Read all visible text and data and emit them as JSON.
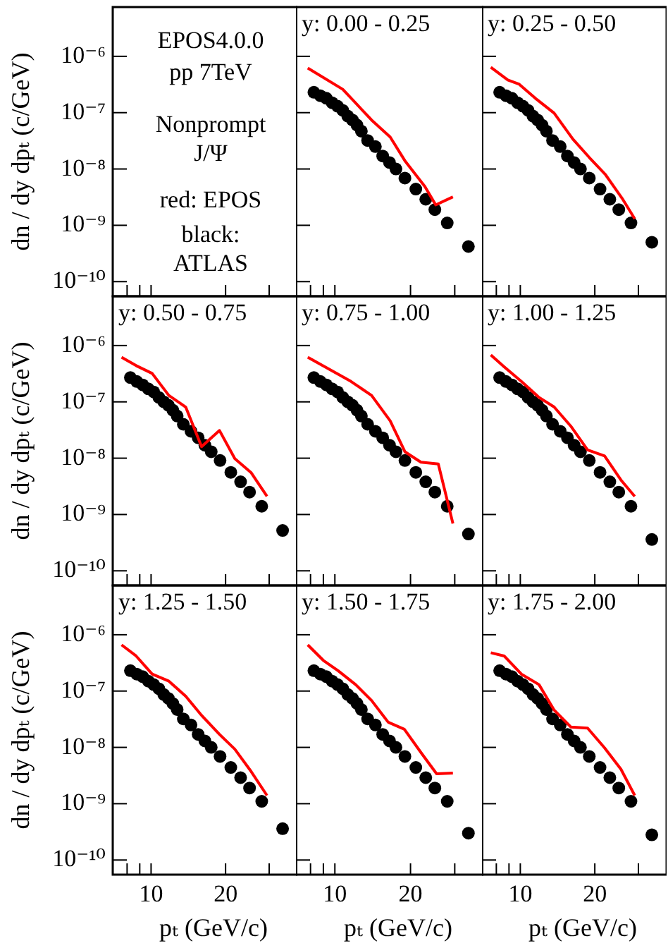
{
  "chart_data": [
    {
      "type": "scatter",
      "ylabel": "dn / dy dpₜ (c/GeV)",
      "annotations": [
        "EPOS4.0.0",
        "pp 7TeV",
        "Nonprompt",
        "J/Ψ",
        "red: EPOS",
        "black:",
        "ATLAS"
      ],
      "log": "xy",
      "xlim": [
        7,
        39
      ],
      "ylim": [
        5.5e-11,
        7.5e-06
      ],
      "xticks": [
        {
          "value": 8,
          "label": null
        },
        {
          "value": 9,
          "label": null
        },
        {
          "value": 10,
          "label": null
        },
        {
          "value": 20,
          "label": null
        },
        {
          "value": 30,
          "label": null
        }
      ],
      "yticks": [
        {
          "value": 1e-06,
          "label": "10⁻⁶"
        },
        {
          "value": 1e-07,
          "label": "10⁻⁷"
        },
        {
          "value": 1e-08,
          "label": "10⁻⁸"
        },
        {
          "value": 1e-09,
          "label": "10⁻⁹"
        },
        {
          "value": 1e-10,
          "label": "10⁻¹⁰"
        }
      ],
      "tick_labels": "y"
    },
    {
      "type": "scatter",
      "title": "y: 0.00 - 0.25",
      "log": "xy",
      "xlim": [
        7,
        39
      ],
      "ylim": [
        5.5e-11,
        7.5e-06
      ],
      "xticks": [
        {
          "value": 8,
          "label": null
        },
        {
          "value": 9,
          "label": null
        },
        {
          "value": 10,
          "label": null
        },
        {
          "value": 20,
          "label": null
        },
        {
          "value": 30,
          "label": null
        }
      ],
      "yticks": [
        {
          "value": 1e-06,
          "label": null
        },
        {
          "value": 1e-07,
          "label": null
        },
        {
          "value": 1e-08,
          "label": null
        },
        {
          "value": 1e-09,
          "label": null
        },
        {
          "value": 1e-10,
          "label": null
        }
      ],
      "tick_labels": false,
      "series": [
        {
          "type": "scatter",
          "marker": "circle",
          "color": "#000000",
          "x": [
            8.25,
            8.75,
            9.25,
            9.75,
            10.25,
            10.75,
            11.25,
            11.75,
            12.25,
            12.75,
            13.5,
            14.5,
            15.5,
            16.5,
            17.5,
            19,
            21,
            23,
            25,
            28,
            34
          ],
          "values": [
            2.3e-07,
            2e-07,
            1.8e-07,
            1.5e-07,
            1.3e-07,
            1.1e-07,
            8.7e-08,
            7.4e-08,
            6e-08,
            4.7e-08,
            3.2e-08,
            2.5e-08,
            1.7e-08,
            1.3e-08,
            1e-08,
            6.9e-09,
            4.4e-09,
            2.9e-09,
            1.9e-09,
            1.1e-09,
            4.2e-10
          ]
        },
        {
          "type": "line",
          "marker": "none",
          "color": "#ff0000",
          "x": [
            7.8,
            10.75,
            14.0,
            16.6,
            19.0,
            22.8,
            25.2,
            29.5
          ],
          "values": [
            6.2e-07,
            2.6e-07,
            7.4e-08,
            3.7e-08,
            1.4e-08,
            4.9e-09,
            2.3e-09,
            3.2e-09
          ]
        }
      ]
    },
    {
      "type": "scatter",
      "title": "y: 0.25 - 0.50",
      "log": "xy",
      "xlim": [
        7,
        39
      ],
      "ylim": [
        5.5e-11,
        7.5e-06
      ],
      "xticks": [
        {
          "value": 8,
          "label": null
        },
        {
          "value": 9,
          "label": null
        },
        {
          "value": 10,
          "label": null
        },
        {
          "value": 20,
          "label": null
        },
        {
          "value": 30,
          "label": null
        }
      ],
      "yticks": [
        {
          "value": 1e-06,
          "label": null
        },
        {
          "value": 1e-07,
          "label": null
        },
        {
          "value": 1e-08,
          "label": null
        },
        {
          "value": 1e-09,
          "label": null
        },
        {
          "value": 1e-10,
          "label": null
        }
      ],
      "tick_labels": false,
      "series": [
        {
          "type": "scatter",
          "marker": "circle",
          "color": "#000000",
          "x": [
            8.25,
            8.75,
            9.25,
            9.75,
            10.25,
            10.75,
            11.25,
            11.75,
            12.25,
            12.75,
            13.5,
            14.5,
            15.5,
            16.5,
            17.5,
            19,
            21,
            23,
            25,
            28,
            34
          ],
          "values": [
            2.3e-07,
            2e-07,
            1.8e-07,
            1.5e-07,
            1.3e-07,
            1.1e-07,
            8.7e-08,
            7.4e-08,
            6e-08,
            4.7e-08,
            3.2e-08,
            2.5e-08,
            1.7e-08,
            1.3e-08,
            1e-08,
            6.9e-09,
            4.4e-09,
            2.9e-09,
            1.9e-09,
            1.1e-09,
            5e-10
          ]
        },
        {
          "type": "line",
          "marker": "none",
          "color": "#ff0000",
          "x": [
            7.6,
            8.9,
            9.9,
            11.5,
            13.7,
            16.3,
            19.0,
            22.1,
            25.8,
            29.0
          ],
          "values": [
            6.4e-07,
            3.8e-07,
            3.2e-07,
            1.8e-07,
            9.8e-08,
            3.4e-08,
            1.6e-08,
            7.9e-09,
            3e-09,
            1.3e-09
          ]
        }
      ]
    },
    {
      "type": "scatter",
      "title": "y: 0.50 - 0.75",
      "ylabel": "dn / dy dpₜ (c/GeV)",
      "log": "xy",
      "xlim": [
        7,
        39
      ],
      "ylim": [
        5.5e-11,
        7.5e-06
      ],
      "xticks": [
        {
          "value": 8,
          "label": null
        },
        {
          "value": 9,
          "label": null
        },
        {
          "value": 10,
          "label": null
        },
        {
          "value": 20,
          "label": null
        },
        {
          "value": 30,
          "label": null
        }
      ],
      "yticks": [
        {
          "value": 1e-06,
          "label": "10⁻⁶"
        },
        {
          "value": 1e-07,
          "label": "10⁻⁷"
        },
        {
          "value": 1e-08,
          "label": "10⁻⁸"
        },
        {
          "value": 1e-09,
          "label": "10⁻⁹"
        },
        {
          "value": 1e-10,
          "label": "10⁻¹⁰"
        }
      ],
      "tick_labels": "y",
      "series": [
        {
          "type": "scatter",
          "marker": "circle",
          "color": "#000000",
          "x": [
            8.25,
            8.75,
            9.25,
            9.75,
            10.25,
            10.75,
            11.25,
            11.75,
            12.25,
            12.75,
            13.5,
            14.5,
            15.5,
            16.5,
            17.5,
            19,
            21,
            23,
            25,
            28,
            34
          ],
          "values": [
            2.7e-07,
            2.3e-07,
            2e-07,
            1.7e-07,
            1.5e-07,
            1.2e-07,
            1e-07,
            8.7e-08,
            7.1e-08,
            5.6e-08,
            4e-08,
            3e-08,
            2.3e-08,
            1.7e-08,
            1.3e-08,
            9.1e-09,
            5.6e-09,
            3.8e-09,
            2.5e-09,
            1.4e-09,
            5.2e-10
          ]
        },
        {
          "type": "line",
          "marker": "none",
          "color": "#ff0000",
          "x": [
            7.6,
            8.7,
            10.1,
            11.8,
            13.8,
            16.0,
            18.9,
            21.8,
            25.4,
            29.4
          ],
          "values": [
            6.2e-07,
            4.4e-07,
            3.2e-07,
            1.3e-07,
            8.1e-08,
            1.6e-08,
            3.1e-08,
            9.8e-09,
            5.5e-09,
            2.1e-09
          ]
        }
      ]
    },
    {
      "type": "scatter",
      "title": "y: 0.75 - 1.00",
      "log": "xy",
      "xlim": [
        7,
        39
      ],
      "ylim": [
        5.5e-11,
        7.5e-06
      ],
      "xticks": [
        {
          "value": 8,
          "label": null
        },
        {
          "value": 9,
          "label": null
        },
        {
          "value": 10,
          "label": null
        },
        {
          "value": 20,
          "label": null
        },
        {
          "value": 30,
          "label": null
        }
      ],
      "yticks": [
        {
          "value": 1e-06,
          "label": null
        },
        {
          "value": 1e-07,
          "label": null
        },
        {
          "value": 1e-08,
          "label": null
        },
        {
          "value": 1e-09,
          "label": null
        },
        {
          "value": 1e-10,
          "label": null
        }
      ],
      "tick_labels": false,
      "series": [
        {
          "type": "scatter",
          "marker": "circle",
          "color": "#000000",
          "x": [
            8.25,
            8.75,
            9.25,
            9.75,
            10.25,
            10.75,
            11.25,
            11.75,
            12.25,
            12.75,
            13.5,
            14.5,
            15.5,
            16.5,
            17.5,
            19,
            21,
            23,
            25,
            28,
            34
          ],
          "values": [
            2.7e-07,
            2.3e-07,
            2e-07,
            1.7e-07,
            1.5e-07,
            1.2e-07,
            1e-07,
            8.7e-08,
            7.1e-08,
            5.6e-08,
            4e-08,
            3e-08,
            2.3e-08,
            1.7e-08,
            1.3e-08,
            9.1e-09,
            5.6e-09,
            3.8e-09,
            2.5e-09,
            1.4e-09,
            4.5e-10
          ]
        },
        {
          "type": "line",
          "marker": "none",
          "color": "#ff0000",
          "x": [
            7.8,
            9.5,
            11.6,
            14.0,
            16.6,
            19.0,
            22.0,
            25.8,
            29.5
          ],
          "values": [
            6.2e-07,
            3.8e-07,
            2.3e-07,
            1.3e-07,
            4.6e-08,
            1.3e-08,
            8.5e-09,
            7.9e-09,
            6.9e-10
          ]
        }
      ]
    },
    {
      "type": "scatter",
      "title": "y: 1.00 - 1.25",
      "log": "xy",
      "xlim": [
        7,
        39
      ],
      "ylim": [
        5.5e-11,
        7.5e-06
      ],
      "xticks": [
        {
          "value": 8,
          "label": null
        },
        {
          "value": 9,
          "label": null
        },
        {
          "value": 10,
          "label": null
        },
        {
          "value": 20,
          "label": null
        },
        {
          "value": 30,
          "label": null
        }
      ],
      "yticks": [
        {
          "value": 1e-06,
          "label": null
        },
        {
          "value": 1e-07,
          "label": null
        },
        {
          "value": 1e-08,
          "label": null
        },
        {
          "value": 1e-09,
          "label": null
        },
        {
          "value": 1e-10,
          "label": null
        }
      ],
      "tick_labels": false,
      "series": [
        {
          "type": "scatter",
          "marker": "circle",
          "color": "#000000",
          "x": [
            8.25,
            8.75,
            9.25,
            9.75,
            10.25,
            10.75,
            11.25,
            11.75,
            12.25,
            12.75,
            13.5,
            14.5,
            15.5,
            16.5,
            17.5,
            19,
            21,
            23,
            25,
            28,
            34
          ],
          "values": [
            2.7e-07,
            2.3e-07,
            2e-07,
            1.7e-07,
            1.5e-07,
            1.2e-07,
            1e-07,
            8.7e-08,
            7.1e-08,
            5.6e-08,
            4e-08,
            3e-08,
            2.3e-08,
            1.7e-08,
            1.3e-08,
            9.1e-09,
            5.6e-09,
            3.8e-09,
            2.5e-09,
            1.4e-09,
            3.6e-10
          ]
        },
        {
          "type": "line",
          "marker": "none",
          "color": "#ff0000",
          "x": [
            7.6,
            8.6,
            10.1,
            11.9,
            13.7,
            16.0,
            18.7,
            21.9,
            25.5,
            29.0
          ],
          "values": [
            6.8e-07,
            4.2e-07,
            2.3e-07,
            1.2e-07,
            8.1e-08,
            3.7e-08,
            1.4e-08,
            1.1e-08,
            4.1e-09,
            2.1e-09
          ]
        }
      ]
    },
    {
      "type": "scatter",
      "title": "y: 1.25 - 1.50",
      "xlabel": "pₜ (GeV/c)",
      "ylabel": "dn / dy dpₜ (c/GeV)",
      "log": "xy",
      "xlim": [
        7,
        39
      ],
      "ylim": [
        5.5e-11,
        7.5e-06
      ],
      "xticks": [
        {
          "value": 8,
          "label": null
        },
        {
          "value": 9,
          "label": null
        },
        {
          "value": 10,
          "label": "10"
        },
        {
          "value": 20,
          "label": "20"
        },
        {
          "value": 30,
          "label": null
        }
      ],
      "yticks": [
        {
          "value": 1e-06,
          "label": "10⁻⁶"
        },
        {
          "value": 1e-07,
          "label": "10⁻⁷"
        },
        {
          "value": 1e-08,
          "label": "10⁻⁸"
        },
        {
          "value": 1e-09,
          "label": "10⁻⁹"
        },
        {
          "value": 1e-10,
          "label": "10⁻¹⁰"
        }
      ],
      "series": [
        {
          "type": "scatter",
          "marker": "circle",
          "color": "#000000",
          "x": [
            8.25,
            8.75,
            9.25,
            9.75,
            10.25,
            10.75,
            11.25,
            11.75,
            12.25,
            12.75,
            13.5,
            14.5,
            15.5,
            16.5,
            17.5,
            19,
            21,
            23,
            25,
            28,
            34
          ],
          "values": [
            2.3e-07,
            2e-07,
            1.8e-07,
            1.5e-07,
            1.3e-07,
            1.1e-07,
            8.7e-08,
            7.4e-08,
            6e-08,
            4.7e-08,
            3.2e-08,
            2.5e-08,
            1.7e-08,
            1.3e-08,
            1e-08,
            6.9e-09,
            4.4e-09,
            2.9e-09,
            1.9e-09,
            1.1e-09,
            3.6e-10
          ]
        },
        {
          "type": "line",
          "marker": "none",
          "color": "#ff0000",
          "x": [
            7.6,
            8.7,
            10.1,
            11.8,
            13.8,
            16.0,
            18.9,
            21.8,
            25.4,
            29.4
          ],
          "values": [
            6.6e-07,
            4.2e-07,
            2e-07,
            1.5e-07,
            8.1e-08,
            3.7e-08,
            1.7e-08,
            9.3e-09,
            3.7e-09,
            1.4e-09
          ]
        }
      ]
    },
    {
      "type": "scatter",
      "title": "y: 1.50 - 1.75",
      "xlabel": "pₜ (GeV/c)",
      "log": "xy",
      "xlim": [
        7,
        39
      ],
      "ylim": [
        5.5e-11,
        7.5e-06
      ],
      "xticks": [
        {
          "value": 8,
          "label": null
        },
        {
          "value": 9,
          "label": null
        },
        {
          "value": 10,
          "label": "10"
        },
        {
          "value": 20,
          "label": "20"
        },
        {
          "value": 30,
          "label": null
        }
      ],
      "yticks": [
        {
          "value": 1e-06,
          "label": null
        },
        {
          "value": 1e-07,
          "label": null
        },
        {
          "value": 1e-08,
          "label": null
        },
        {
          "value": 1e-09,
          "label": null
        },
        {
          "value": 1e-10,
          "label": null
        }
      ],
      "tick_labels": "x",
      "series": [
        {
          "type": "scatter",
          "marker": "circle",
          "color": "#000000",
          "x": [
            8.25,
            8.75,
            9.25,
            9.75,
            10.25,
            10.75,
            11.25,
            11.75,
            12.25,
            12.75,
            13.5,
            14.5,
            15.5,
            16.5,
            17.5,
            19,
            21,
            23,
            25,
            28,
            34
          ],
          "values": [
            2.3e-07,
            2e-07,
            1.8e-07,
            1.5e-07,
            1.3e-07,
            1.1e-07,
            8.7e-08,
            7.4e-08,
            6e-08,
            4.7e-08,
            3.2e-08,
            2.5e-08,
            1.7e-08,
            1.3e-08,
            1e-08,
            6.9e-09,
            4.4e-09,
            2.9e-09,
            1.9e-09,
            1.1e-09,
            3e-10
          ]
        },
        {
          "type": "line",
          "marker": "none",
          "color": "#ff0000",
          "x": [
            7.8,
            9.0,
            10.3,
            12.1,
            14.0,
            16.3,
            18.9,
            22.1,
            25.4,
            29.5
          ],
          "values": [
            6.6e-07,
            3.5e-07,
            2.3e-07,
            1.3e-07,
            6.8e-08,
            2.8e-08,
            2.1e-08,
            7.9e-09,
            3.4e-09,
            3.5e-09
          ]
        }
      ]
    },
    {
      "type": "scatter",
      "title": "y: 1.75 - 2.00",
      "xlabel": "pₜ (GeV/c)",
      "log": "xy",
      "xlim": [
        7,
        39
      ],
      "ylim": [
        5.5e-11,
        7.5e-06
      ],
      "xticks": [
        {
          "value": 8,
          "label": null
        },
        {
          "value": 9,
          "label": null
        },
        {
          "value": 10,
          "label": "10"
        },
        {
          "value": 20,
          "label": "20"
        },
        {
          "value": 30,
          "label": null
        }
      ],
      "yticks": [
        {
          "value": 1e-06,
          "label": null
        },
        {
          "value": 1e-07,
          "label": null
        },
        {
          "value": 1e-08,
          "label": null
        },
        {
          "value": 1e-09,
          "label": null
        },
        {
          "value": 1e-10,
          "label": null
        }
      ],
      "tick_labels": "x",
      "series": [
        {
          "type": "scatter",
          "marker": "circle",
          "color": "#000000",
          "x": [
            8.25,
            8.75,
            9.25,
            9.75,
            10.25,
            10.75,
            11.25,
            11.75,
            12.25,
            12.75,
            13.5,
            14.5,
            15.5,
            16.5,
            17.5,
            19,
            21,
            23,
            25,
            28,
            34
          ],
          "values": [
            2.3e-07,
            2e-07,
            1.8e-07,
            1.5e-07,
            1.3e-07,
            1.1e-07,
            8.7e-08,
            7.4e-08,
            6e-08,
            4.7e-08,
            3.2e-08,
            2.5e-08,
            1.7e-08,
            1.3e-08,
            1e-08,
            6.9e-09,
            4.4e-09,
            2.9e-09,
            1.9e-09,
            1.1e-09,
            2.8e-10
          ]
        },
        {
          "type": "line",
          "marker": "none",
          "color": "#ff0000",
          "x": [
            7.6,
            8.6,
            10.1,
            11.9,
            13.7,
            16.0,
            18.7,
            21.9,
            25.5,
            29.0
          ],
          "values": [
            4.8e-07,
            4.2e-07,
            2e-07,
            1.3e-07,
            4.6e-08,
            2.3e-08,
            2.2e-08,
            9.8e-09,
            4.1e-09,
            1.4e-09
          ]
        }
      ]
    }
  ]
}
